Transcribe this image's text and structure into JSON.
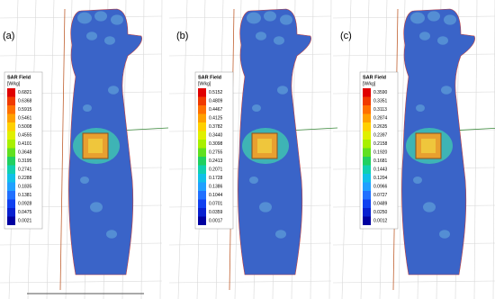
{
  "panels": [
    {
      "label": "(a)",
      "legend": {
        "title": "SAR Field",
        "unit": "[W/kg]",
        "values": [
          "0.6821",
          "0.6368",
          "0.5915",
          "0.5461",
          "0.5008",
          "0.4555",
          "0.4101",
          "0.3648",
          "0.3195",
          "0.2741",
          "0.2288",
          "0.1835",
          "0.1381",
          "0.0928",
          "0.0475",
          "0.0021"
        ]
      }
    },
    {
      "label": "(b)",
      "legend": {
        "title": "SAR Field",
        "unit": "[W/kg]",
        "values": [
          "0.5152",
          "0.4809",
          "0.4467",
          "0.4125",
          "0.3782",
          "0.3440",
          "0.3098",
          "0.2755",
          "0.2413",
          "0.2071",
          "0.1728",
          "0.1386",
          "0.1044",
          "0.0701",
          "0.0359",
          "0.0017"
        ]
      }
    },
    {
      "label": "(c)",
      "legend": {
        "title": "SAR Field",
        "unit": "[W/kg]",
        "values": [
          "0.3590",
          "0.3351",
          "0.3113",
          "0.2874",
          "0.2635",
          "0.2397",
          "0.2158",
          "0.1920",
          "0.1681",
          "0.1443",
          "0.1204",
          "0.0966",
          "0.0727",
          "0.0489",
          "0.0250",
          "0.0012"
        ]
      }
    }
  ]
}
